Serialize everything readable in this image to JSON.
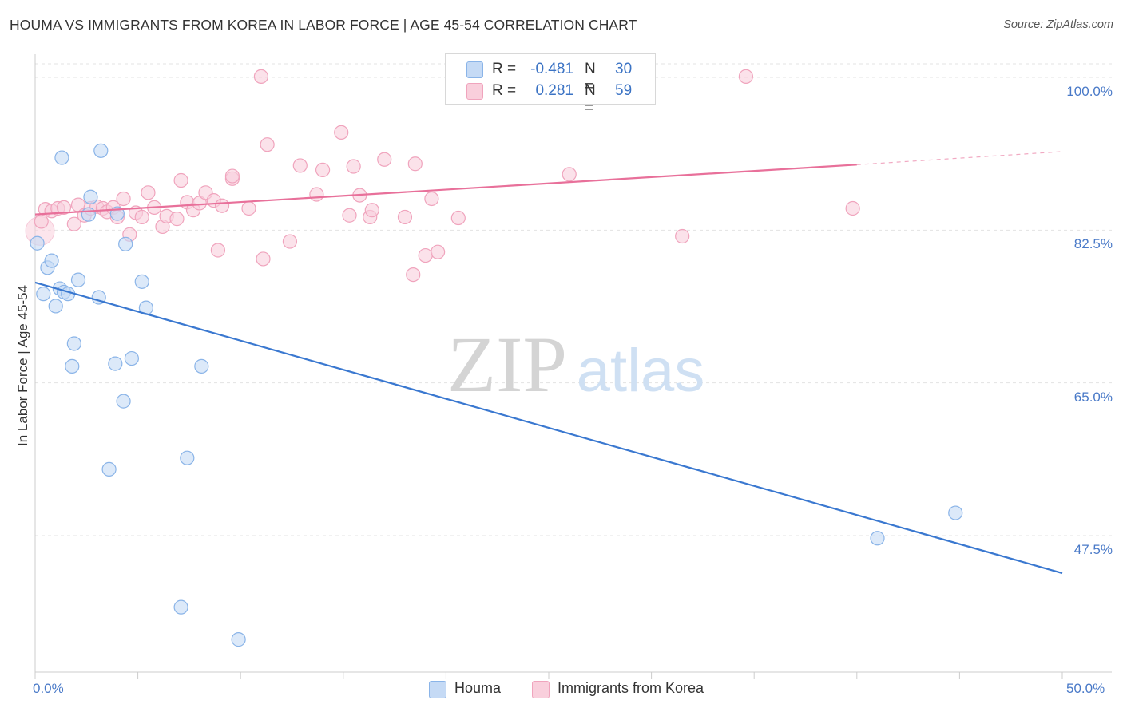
{
  "title": "HOUMA VS IMMIGRANTS FROM KOREA IN LABOR FORCE | AGE 45-54 CORRELATION CHART",
  "source": "Source: ZipAtlas.com",
  "watermark": {
    "zip": "ZIP",
    "atlas": "atlas"
  },
  "legend": {
    "r_label": "R =",
    "n_label": "N =",
    "rows": [
      {
        "name": "Houma",
        "r": "-0.481",
        "n": "30"
      },
      {
        "name": "Immigrants from Korea",
        "r": "0.281",
        "n": "59"
      }
    ]
  },
  "chart_data": {
    "type": "scatter",
    "title": "HOUMA VS IMMIGRANTS FROM KOREA IN LABOR FORCE | AGE 45-54 CORRELATION CHART",
    "xlabel": "",
    "ylabel": "In Labor Force | Age 45-54",
    "xlim": [
      0,
      50
    ],
    "ylim": [
      32,
      103
    ],
    "x_tick_labels": [
      "0.0%",
      "50.0%"
    ],
    "y_ticks": [
      47.5,
      65.0,
      82.5,
      100.0
    ],
    "y_tick_labels": [
      "47.5%",
      "65.0%",
      "82.5%",
      "100.0%"
    ],
    "grid": true,
    "legend_position": "top-center",
    "series": [
      {
        "name": "Houma",
        "color": "#8ab4e8",
        "fill": "#c5daf5",
        "line_color": "#3a78d0",
        "r": -0.481,
        "n": 30,
        "trend": {
          "x0": 0,
          "y0": 76.5,
          "x1": 50,
          "y1": 43.2
        },
        "points": [
          [
            0.1,
            81.0
          ],
          [
            0.4,
            75.2
          ],
          [
            0.6,
            78.2
          ],
          [
            0.8,
            79.0
          ],
          [
            1.0,
            73.8
          ],
          [
            1.2,
            75.8
          ],
          [
            1.4,
            75.4
          ],
          [
            1.3,
            90.8
          ],
          [
            1.6,
            75.2
          ],
          [
            1.8,
            66.9
          ],
          [
            1.9,
            69.5
          ],
          [
            2.1,
            76.8
          ],
          [
            2.6,
            84.3
          ],
          [
            2.7,
            86.3
          ],
          [
            3.1,
            74.8
          ],
          [
            3.2,
            91.6
          ],
          [
            3.6,
            55.1
          ],
          [
            3.9,
            67.2
          ],
          [
            4.0,
            84.4
          ],
          [
            4.3,
            62.9
          ],
          [
            4.4,
            80.9
          ],
          [
            4.7,
            67.8
          ],
          [
            5.2,
            76.6
          ],
          [
            5.4,
            73.6
          ],
          [
            7.1,
            39.3
          ],
          [
            7.4,
            56.4
          ],
          [
            8.1,
            66.9
          ],
          [
            9.9,
            35.6
          ],
          [
            41.0,
            47.2
          ],
          [
            44.8,
            50.1
          ]
        ]
      },
      {
        "name": "Immigrants from Korea",
        "color": "#f0a4bd",
        "fill": "#f9cfdc",
        "line_color": "#e8709a",
        "r": 0.281,
        "n": 59,
        "trend": {
          "x0": 0,
          "y0": 84.3,
          "x1": 40,
          "y1": 90.0
        },
        "trend_dashed": {
          "x0": 40,
          "y0": 90.0,
          "x1": 50,
          "y1": 91.5
        },
        "points": [
          [
            0.3,
            83.5
          ],
          [
            0.5,
            84.9
          ],
          [
            0.8,
            84.7
          ],
          [
            1.1,
            85.0
          ],
          [
            1.4,
            85.1
          ],
          [
            1.9,
            83.2
          ],
          [
            2.1,
            85.4
          ],
          [
            2.4,
            84.2
          ],
          [
            2.7,
            85.0
          ],
          [
            3.0,
            85.2
          ],
          [
            3.3,
            85.0
          ],
          [
            3.5,
            84.6
          ],
          [
            3.8,
            85.1
          ],
          [
            4.0,
            84.0
          ],
          [
            4.3,
            86.1
          ],
          [
            4.6,
            82.0
          ],
          [
            4.9,
            84.5
          ],
          [
            5.2,
            84.0
          ],
          [
            5.5,
            86.8
          ],
          [
            5.8,
            85.1
          ],
          [
            6.2,
            82.9
          ],
          [
            6.4,
            84.1
          ],
          [
            6.9,
            83.8
          ],
          [
            7.1,
            88.2
          ],
          [
            7.4,
            85.7
          ],
          [
            7.7,
            84.8
          ],
          [
            8.0,
            85.6
          ],
          [
            8.3,
            86.8
          ],
          [
            8.7,
            85.9
          ],
          [
            9.1,
            85.3
          ],
          [
            9.6,
            88.4
          ],
          [
            9.6,
            88.7
          ],
          [
            8.9,
            80.2
          ],
          [
            10.4,
            85.0
          ],
          [
            11.1,
            79.2
          ],
          [
            11.3,
            92.3
          ],
          [
            12.4,
            81.2
          ],
          [
            12.9,
            89.9
          ],
          [
            13.7,
            86.6
          ],
          [
            14.0,
            89.4
          ],
          [
            14.9,
            93.7
          ],
          [
            15.3,
            84.2
          ],
          [
            15.5,
            89.8
          ],
          [
            15.8,
            86.5
          ],
          [
            16.3,
            84.0
          ],
          [
            16.4,
            84.8
          ],
          [
            17.0,
            90.6
          ],
          [
            18.0,
            84.0
          ],
          [
            18.4,
            77.4
          ],
          [
            18.5,
            90.1
          ],
          [
            19.0,
            79.6
          ],
          [
            19.3,
            86.1
          ],
          [
            19.6,
            80.0
          ],
          [
            20.6,
            83.9
          ],
          [
            26.0,
            88.9
          ],
          [
            31.5,
            81.8
          ],
          [
            34.6,
            100.1
          ],
          [
            39.8,
            85.0
          ],
          [
            11.0,
            100.1
          ]
        ]
      }
    ]
  }
}
